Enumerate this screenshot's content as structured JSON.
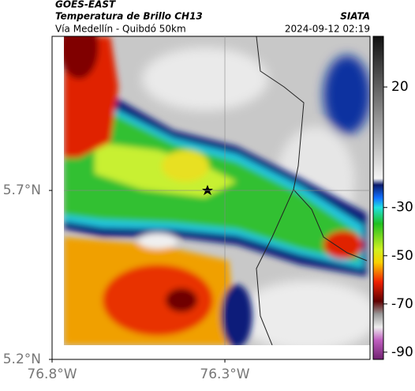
{
  "header": {
    "source": "GOES-EAST",
    "title": "Temperatura de Brillo CH13",
    "subtitle": "Vía Medellín - Quibdó 50km",
    "brand": "SIATA",
    "datetime": "2024-09-12 02:19"
  },
  "map": {
    "latlim": [
      5.2,
      6.156
    ],
    "lonlim": [
      -76.8,
      -75.88
    ],
    "latticks": [
      {
        "value": 5.7,
        "label": "5.7°N"
      },
      {
        "value": 5.2,
        "label": "5.2°N"
      }
    ],
    "lonticks": [
      {
        "value": -76.8,
        "label": "76.8°W"
      },
      {
        "value": -76.3,
        "label": "76.3°W"
      }
    ]
  },
  "colorbar": {
    "lim": [
      41,
      -93
    ],
    "ticks": [
      20,
      -30,
      -50,
      -70,
      -90
    ]
  }
}
